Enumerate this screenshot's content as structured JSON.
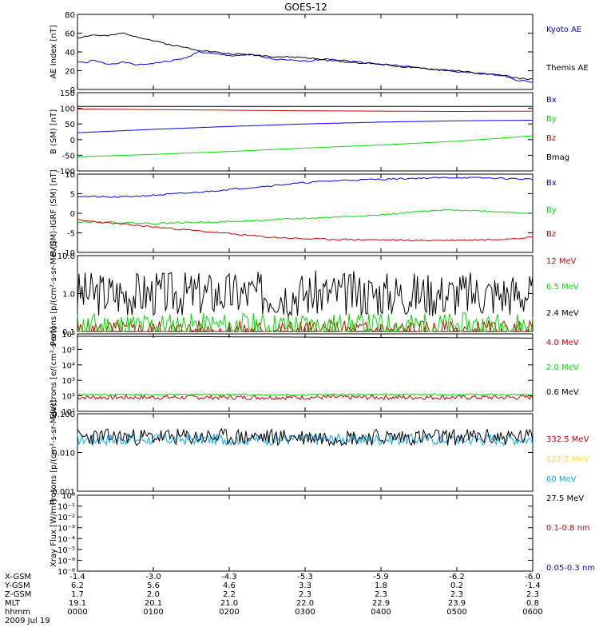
{
  "title": "GOES-12",
  "colors": {
    "black": "#000000",
    "blue": "#0000ff",
    "red": "#cc0000",
    "green": "#00dd00",
    "cyan": "#00aaff",
    "yellow": "#ffdd00"
  },
  "chart_data": [
    {
      "type": "line",
      "ylabel": "AE Index [nT]",
      "ylim": [
        0,
        80
      ],
      "yticks": [
        "0",
        "20",
        "40",
        "60",
        "80"
      ],
      "legend": [
        "Kyoto AE",
        "Themis AE"
      ],
      "series": [
        {
          "name": "Kyoto AE",
          "color": "blue",
          "x": [
            0,
            0.1,
            0.2,
            0.4,
            0.6,
            0.8,
            1.0,
            1.2,
            1.4,
            1.6,
            1.8,
            2.0,
            2.3,
            2.6,
            3.0,
            3.3,
            3.6,
            4.0,
            4.3,
            4.6,
            5.0,
            5.3,
            5.6,
            5.8,
            6.0
          ],
          "y": [
            30,
            28,
            31,
            27,
            29,
            26,
            28,
            30,
            33,
            40,
            38,
            36,
            37,
            32,
            30,
            33,
            30,
            27,
            25,
            22,
            19,
            17,
            15,
            10,
            8
          ]
        },
        {
          "name": "Themis AE",
          "color": "black",
          "x": [
            0,
            0.2,
            0.4,
            0.6,
            0.8,
            1.0,
            1.2,
            1.4,
            1.6,
            1.8,
            2.0,
            2.3,
            2.6,
            3.0,
            3.3,
            3.6,
            4.0,
            4.3,
            4.6,
            5.0,
            5.3,
            5.6,
            5.8,
            6.0
          ],
          "y": [
            55,
            58,
            57,
            60,
            56,
            52,
            48,
            45,
            42,
            40,
            38,
            37,
            35,
            34,
            31,
            29,
            27,
            24,
            22,
            20,
            17,
            15,
            12,
            11
          ]
        }
      ]
    },
    {
      "type": "line",
      "ylabel": "B (SM) [nT]",
      "ylim": [
        -100,
        150
      ],
      "yticks": [
        "-100",
        "-50",
        "0",
        "50",
        "100",
        "150"
      ],
      "legend": [
        "Bx",
        "By",
        "Bz",
        "Bmag"
      ],
      "series": [
        {
          "name": "Bx",
          "color": "blue",
          "x": [
            0,
            1,
            2,
            3,
            4,
            5,
            6
          ],
          "y": [
            22,
            33,
            42,
            50,
            56,
            60,
            62
          ]
        },
        {
          "name": "By",
          "color": "green",
          "x": [
            0,
            1,
            2,
            3,
            4,
            5,
            6
          ],
          "y": [
            -55,
            -47,
            -38,
            -27,
            -17,
            -5,
            12
          ]
        },
        {
          "name": "Bz",
          "color": "red",
          "x": [
            0,
            1,
            2,
            3,
            4,
            5,
            6
          ],
          "y": [
            98,
            96,
            94,
            92,
            91,
            90,
            91
          ]
        },
        {
          "name": "Bmag",
          "color": "black",
          "x": [
            0,
            1,
            2,
            3,
            4,
            5,
            6
          ],
          "y": [
            106,
            106,
            106,
            106,
            106,
            106,
            106
          ]
        }
      ]
    },
    {
      "type": "line",
      "ylabel": "B (SM)-IGRF (SM) [nT]",
      "ylim": [
        -12,
        11
      ],
      "yticks": [
        "-10",
        "-5",
        "0",
        "5",
        "10"
      ],
      "legend": [
        "Bx",
        "By",
        "Bz"
      ],
      "series": [
        {
          "name": "Bx",
          "color": "blue",
          "x": [
            0,
            0.5,
            1,
            1.5,
            2,
            2.5,
            3,
            3.5,
            4,
            4.5,
            5,
            5.5,
            6
          ],
          "y": [
            4.5,
            4.2,
            4.8,
            5.5,
            6.5,
            7.5,
            8.5,
            9.2,
            9.5,
            9.8,
            10,
            9.8,
            9.5
          ]
        },
        {
          "name": "By",
          "color": "green",
          "x": [
            0,
            0.5,
            1,
            1.5,
            2,
            2.5,
            3,
            3.5,
            4,
            4.5,
            5,
            5.5,
            6
          ],
          "y": [
            -3,
            -3.2,
            -3.5,
            -3.2,
            -3,
            -2.5,
            -2,
            -1.5,
            -1,
            0,
            0.5,
            0,
            -0.5
          ]
        },
        {
          "name": "Bz",
          "color": "red",
          "x": [
            0,
            0.5,
            1,
            1.5,
            2,
            2.5,
            3,
            3.5,
            4,
            4.5,
            5,
            5.5,
            6
          ],
          "y": [
            -2.5,
            -3.5,
            -4.5,
            -5.5,
            -6.5,
            -7.5,
            -8,
            -8.2,
            -8.3,
            -8.5,
            -8.4,
            -8.2,
            -7.5
          ]
        }
      ]
    },
    {
      "type": "line",
      "ylabel": "Protons [p/(cm²-s-sr-MeV)]",
      "scale": "log",
      "ylim": [
        0.1,
        10
      ],
      "yticks": [
        "0.1",
        "1.0",
        "10.0"
      ],
      "legend": [
        "12 MeV",
        "6.5 MeV",
        "2.4 MeV"
      ],
      "series": [
        {
          "name": "12 MeV",
          "color": "red",
          "noise": {
            "center": 0.1,
            "spread": 0.3,
            "seed": 5
          }
        },
        {
          "name": "6.5 MeV",
          "color": "green",
          "noise": {
            "center": 0.14,
            "spread": 0.35,
            "seed": 11
          }
        },
        {
          "name": "2.4 MeV",
          "color": "black",
          "noise": {
            "center": 1.0,
            "spread": 0.6,
            "seed": 3
          }
        }
      ]
    },
    {
      "type": "line",
      "ylabel": "Electrons [e/(cm²-s-sr)]",
      "scale": "log",
      "ylim": [
        10,
        1000000
      ],
      "yticks": [
        "10¹",
        "10²",
        "10³",
        "10⁴",
        "10⁵",
        "10⁶"
      ],
      "legend": [
        "4.0 MeV",
        "2.0 MeV",
        "0.6 MeV"
      ],
      "series": [
        {
          "name": "4.0 MeV",
          "color": "red",
          "noise": {
            "center": 80,
            "spread": 0.15,
            "seed": 7
          }
        },
        {
          "name": "2.0 MeV",
          "color": "green",
          "noise": {
            "center": 120,
            "spread": 0.06,
            "seed": 13
          }
        },
        {
          "name": "0.6 MeV",
          "color": "black",
          "x": [
            0,
            1,
            2,
            3,
            4,
            5,
            6
          ],
          "y": [
            700000,
            680000,
            650000,
            620000,
            580000,
            560000,
            540000
          ]
        }
      ]
    },
    {
      "type": "line",
      "ylabel": "Protons [p/(cm²-s-sr-MeV)]",
      "scale": "log",
      "ylim": [
        0.001,
        0.1
      ],
      "yticks": [
        "0.001",
        "0.010",
        "0.100"
      ],
      "legend": [
        "332.5 MeV",
        "122.5 MeV",
        "60 MeV",
        "27.5 MeV"
      ],
      "series": [
        {
          "name": "332.5 MeV",
          "color": "red"
        },
        {
          "name": "122.5 MeV",
          "color": "yellow"
        },
        {
          "name": "60 MeV",
          "color": "cyan",
          "noise": {
            "center": 0.022,
            "spread": 0.15,
            "seed": 17
          }
        },
        {
          "name": "27.5 MeV",
          "color": "black",
          "noise": {
            "center": 0.025,
            "spread": 0.22,
            "seed": 23
          }
        }
      ]
    },
    {
      "type": "line",
      "ylabel": "Xray Flux [W/m²]",
      "scale": "log",
      "ylim": [
        1e-09,
        1
      ],
      "yticks": [
        "10⁻⁸",
        "10⁻⁶",
        "10⁻⁵",
        "10⁻⁴",
        "10⁻³",
        "10⁻²",
        "10⁻¹",
        "10⁰"
      ],
      "legend": [
        "0.1-0.8 nm",
        "0.05-0.3 nm"
      ],
      "series": [
        {
          "name": "0.1-0.8 nm",
          "color": "red"
        },
        {
          "name": "0.05-0.3 nm",
          "color": "blue"
        }
      ]
    }
  ],
  "x_axis": {
    "ticks": [
      0,
      1,
      2,
      3,
      4,
      5,
      6
    ],
    "rows": [
      {
        "label": "X-GSM",
        "values": [
          "-1.4",
          "-3.0",
          "-4.3",
          "-5.3",
          "-5.9",
          "-6.2",
          "-6.0"
        ]
      },
      {
        "label": "Y-GSM",
        "values": [
          "6.2",
          "5.6",
          "4.6",
          "3.3",
          "1.8",
          "0.2",
          "-1.4"
        ]
      },
      {
        "label": "Z-GSM",
        "values": [
          "1.7",
          "2.0",
          "2.2",
          "2.3",
          "2.3",
          "2.3",
          "2.3"
        ]
      },
      {
        "label": "MLT",
        "values": [
          "19.1",
          "20.1",
          "21.0",
          "22.0",
          "22.9",
          "23.9",
          "0.8"
        ]
      },
      {
        "label": "hhmm",
        "values": [
          "0000",
          "0100",
          "0200",
          "0300",
          "0400",
          "0500",
          "0600"
        ]
      }
    ],
    "date": "2009 Jul 19"
  }
}
